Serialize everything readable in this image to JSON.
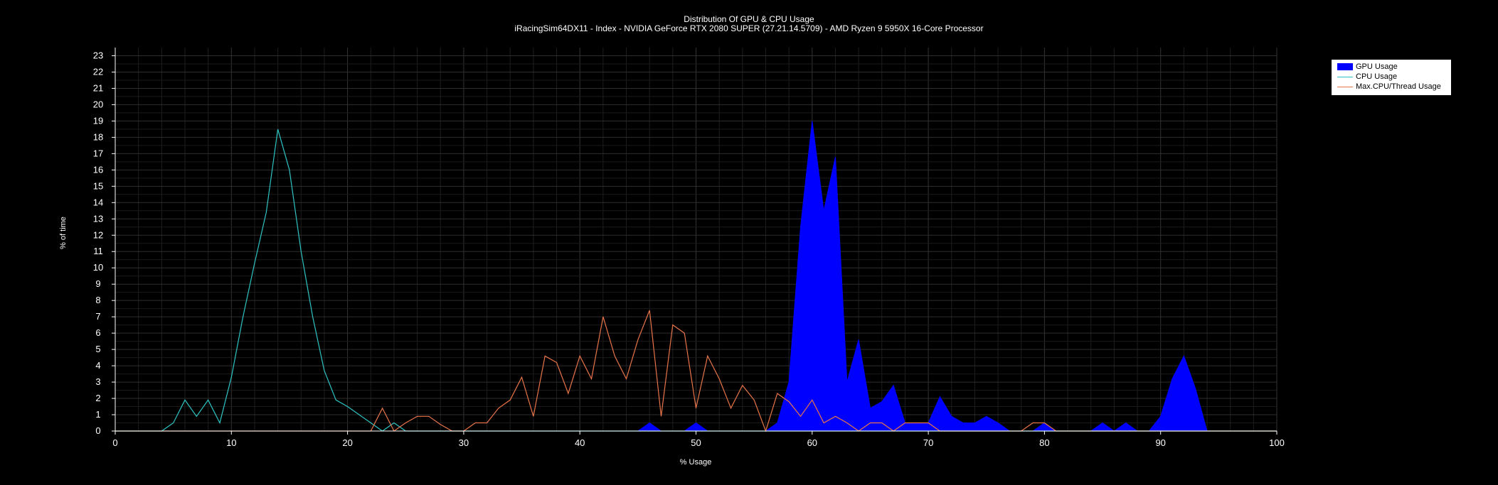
{
  "chart_data": {
    "type": "area",
    "title": "Distribution Of GPU & CPU Usage",
    "subtitle": "iRacingSim64DX11 - Index - NVIDIA GeForce RTX 2080 SUPER (27.21.14.5709) - AMD Ryzen 9 5950X 16-Core Processor",
    "xlabel": "% Usage",
    "ylabel": "% of time",
    "xlim": [
      0,
      100
    ],
    "ylim": [
      0,
      23.5
    ],
    "x_ticks": [
      0,
      10,
      20,
      30,
      40,
      50,
      60,
      70,
      80,
      90,
      100
    ],
    "y_ticks": [
      0,
      1,
      2,
      3,
      4,
      5,
      6,
      7,
      8,
      9,
      10,
      11,
      12,
      13,
      14,
      15,
      16,
      17,
      18,
      19,
      20,
      21,
      22,
      23
    ],
    "grid": true,
    "legend_position": "top-right",
    "colors": {
      "background": "#000000",
      "gpu": "#0000ff",
      "cpu": "#2ec4c4",
      "thread": "#e8744a",
      "grid": "#2a2a2a"
    },
    "series": [
      {
        "name": "GPU Usage",
        "style": "area",
        "x": [
          0,
          45,
          46,
          47,
          48,
          49,
          50,
          51,
          52,
          53,
          54,
          55,
          56,
          57,
          58,
          59,
          60,
          61,
          62,
          63,
          64,
          65,
          66,
          67,
          68,
          69,
          70,
          71,
          72,
          73,
          74,
          75,
          76,
          77,
          78,
          79,
          80,
          81,
          82,
          83,
          84,
          85,
          86,
          87,
          88,
          89,
          90,
          91,
          92,
          93,
          94,
          95,
          100
        ],
        "values": [
          0,
          0,
          0.5,
          0,
          0,
          0,
          0.5,
          0,
          0,
          0,
          0,
          0,
          0,
          0.5,
          3,
          12.5,
          19,
          13.5,
          16.8,
          3,
          5.6,
          1.4,
          1.8,
          2.8,
          0.5,
          0.5,
          0.5,
          2.1,
          0.9,
          0.5,
          0.5,
          0.9,
          0.5,
          0,
          0,
          0,
          0.5,
          0,
          0,
          0,
          0,
          0.5,
          0,
          0.5,
          0,
          0,
          0.9,
          3.2,
          4.6,
          2.6,
          0,
          0,
          0
        ]
      },
      {
        "name": "CPU Usage",
        "style": "line",
        "x": [
          0,
          4,
          5,
          6,
          7,
          8,
          9,
          10,
          11,
          12,
          13,
          14,
          15,
          16,
          17,
          18,
          19,
          20,
          21,
          22,
          23,
          24,
          25,
          26,
          100
        ],
        "values": [
          0,
          0,
          0.5,
          1.9,
          0.9,
          1.9,
          0.5,
          3.3,
          7,
          10.3,
          13.4,
          18.5,
          16,
          11,
          7,
          3.7,
          1.9,
          1.5,
          1,
          0.5,
          0,
          0.5,
          0,
          0,
          0
        ]
      },
      {
        "name": "Max.CPU/Thread Usage",
        "style": "line",
        "x": [
          0,
          22,
          23,
          24,
          25,
          26,
          27,
          28,
          29,
          30,
          31,
          32,
          33,
          34,
          35,
          36,
          37,
          38,
          39,
          40,
          41,
          42,
          43,
          44,
          45,
          46,
          47,
          48,
          49,
          50,
          51,
          52,
          53,
          54,
          55,
          56,
          57,
          58,
          59,
          60,
          61,
          62,
          63,
          64,
          65,
          66,
          67,
          68,
          69,
          70,
          71,
          78,
          79,
          80,
          81,
          100
        ],
        "values": [
          0,
          0,
          1.4,
          0,
          0.5,
          0.9,
          0.9,
          0.4,
          0,
          0,
          0.5,
          0.5,
          1.4,
          1.9,
          3.3,
          0.9,
          4.6,
          4.2,
          2.3,
          4.6,
          3.2,
          7,
          4.6,
          3.2,
          5.6,
          7.4,
          0.9,
          6.5,
          6,
          1.4,
          4.6,
          3.2,
          1.4,
          2.8,
          1.9,
          0,
          2.3,
          1.8,
          0.9,
          1.9,
          0.5,
          0.9,
          0.5,
          0,
          0.5,
          0.5,
          0,
          0.5,
          0.5,
          0.5,
          0,
          0,
          0.5,
          0.5,
          0,
          0
        ]
      }
    ]
  }
}
